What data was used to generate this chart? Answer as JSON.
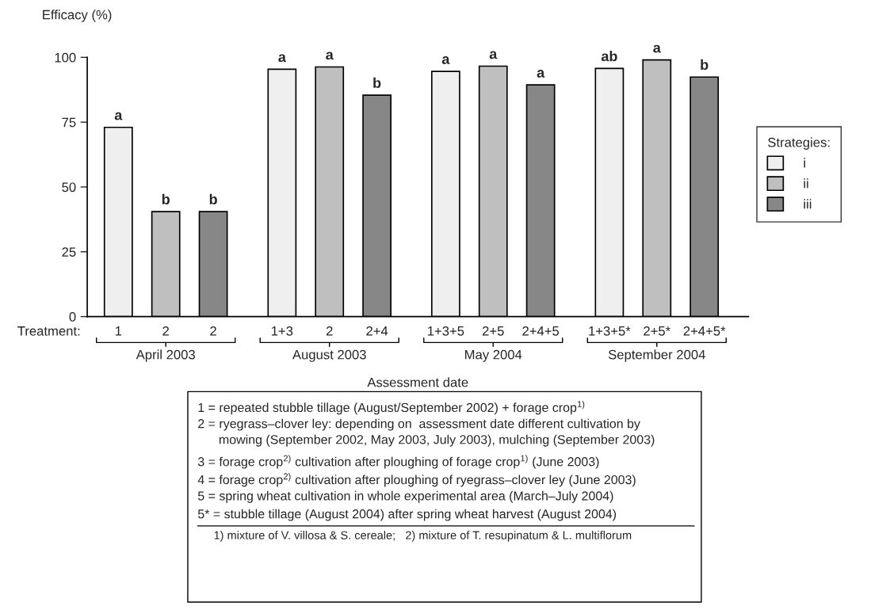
{
  "chart_data": {
    "type": "bar",
    "ylabel": "Efficacy (%)",
    "xlabel": "Assessment date",
    "categories": [
      "April 2003",
      "August 2003",
      "May 2004",
      "September 2004"
    ],
    "series": [
      {
        "name": "i",
        "color": "#efefef",
        "values": [
          73,
          95.4,
          94.6,
          95.7
        ],
        "value_labels": [
          "a",
          "a",
          "a",
          "ab"
        ]
      },
      {
        "name": "ii",
        "color": "#bfbfbf",
        "values": [
          40.5,
          96.3,
          96.6,
          99
        ],
        "value_labels": [
          "b",
          "a",
          "a",
          "a"
        ]
      },
      {
        "name": "iii",
        "color": "#878787",
        "values": [
          40.5,
          85.4,
          89.4,
          92.4
        ],
        "value_labels": [
          "b",
          "b",
          "a",
          "b"
        ]
      }
    ],
    "ylim": [
      0,
      100
    ],
    "yticks": [
      0,
      25,
      50,
      75,
      100
    ],
    "grid": false,
    "legend": "right",
    "legend_title": "Strategies:",
    "annotations": [
      "Treatment:",
      "1",
      "2",
      "2",
      "1+3",
      "2",
      "2+4",
      "1+3+5",
      "2+5",
      "2+4+5",
      "1+3+5*",
      "2+5*",
      "2+4+5*",
      "1 = repeated stubble tillage (August/September 2002) + forage crop$^{1)}$",
      "2 = ryegrass–clover ley: depending on  assessment date different cultivation by\n      mowing (September 2002, May 2003, July 2003), mulching (September 2003)",
      "3 = forage crop$^{2)}$ cultivation after ploughing of forage crop$^{1)}$ (June 2003)",
      "4 = forage crop$^{2)}$ cultivation after ploughing of ryegrass–clover ley (June 2003)",
      "5 = spring wheat cultivation in whole experimental area (March–July 2004)",
      "5* = stubble tillage (August 2004) after spring wheat harvest (August 2004)",
      "1) mixture of V. villosa & S. cereale;   2) mixture of T. resupinatum & L. multiflorum"
    ]
  }
}
